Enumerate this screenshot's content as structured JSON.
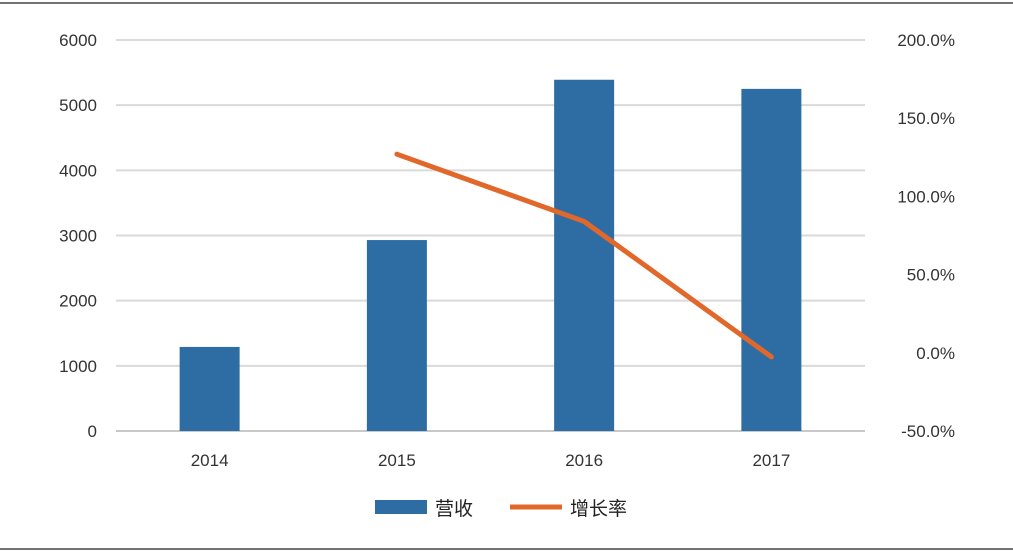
{
  "chart_data": {
    "type": "bar",
    "categories": [
      "2014",
      "2015",
      "2016",
      "2017"
    ],
    "series": [
      {
        "name": "营收",
        "type": "bar",
        "axis": "left",
        "color": "#2e6da4",
        "values": [
          1290,
          2930,
          5390,
          5250
        ]
      },
      {
        "name": "增长率",
        "type": "line",
        "axis": "right",
        "color": "#e2672a",
        "values": [
          null,
          127,
          84,
          -2.6
        ]
      }
    ],
    "left_axis": {
      "ylim": [
        0,
        6000
      ],
      "ticks": [
        "0",
        "1000",
        "2000",
        "3000",
        "4000",
        "5000",
        "6000"
      ]
    },
    "right_axis": {
      "ylim": [
        -50,
        200
      ],
      "ticks": [
        "-50.0%",
        "0.0%",
        "50.0%",
        "100.0%",
        "150.0%",
        "200.0%"
      ]
    },
    "grid": true,
    "legend": "bottom"
  }
}
